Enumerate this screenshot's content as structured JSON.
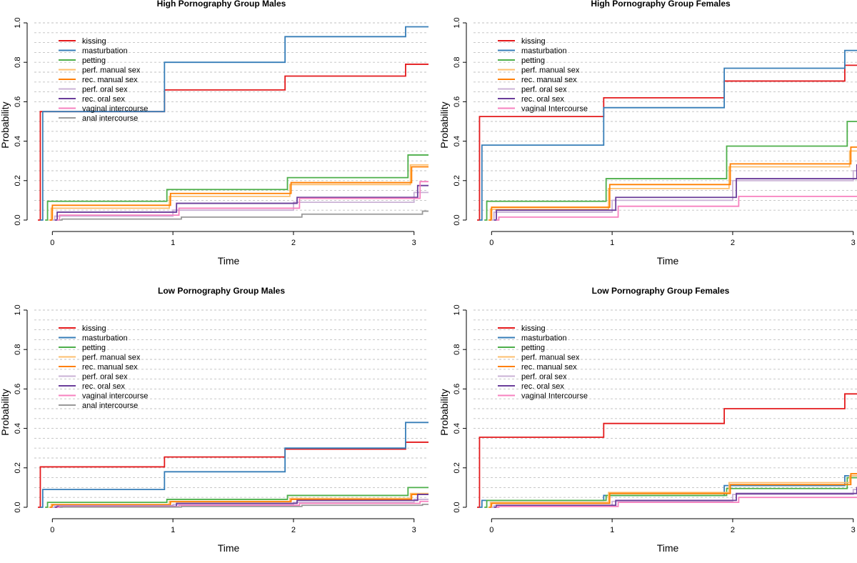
{
  "colors": {
    "kissing": "#e41a1c",
    "masturbation": "#377eb8",
    "petting": "#4daf4a",
    "perf_manual": "#fdbf6f",
    "rec_manual": "#ff7f00",
    "perf_oral": "#cab2d6",
    "rec_oral": "#6a3d9a",
    "vaginal": "#f781bf",
    "anal": "#999999"
  },
  "chart_data": [
    {
      "type": "line",
      "title": "High Pornography Group Males",
      "xlabel": "Time",
      "ylabel": "Probability",
      "xlim": [
        -0.15,
        3.12
      ],
      "ylim": [
        0,
        1
      ],
      "xticks": [
        "0",
        "1",
        "2",
        "3"
      ],
      "yticks": [
        "0.0",
        "0.2",
        "0.4",
        "0.6",
        "0.8",
        "1.0"
      ],
      "grid": "horizontal dashed",
      "legend": "top-left",
      "series": [
        {
          "name": "kissing",
          "color_key": "kissing",
          "x": [
            -0.12,
            -0.1,
            0.93,
            1.93,
            2.93
          ],
          "y": [
            0,
            0.55,
            0.66,
            0.73,
            0.79
          ]
        },
        {
          "name": "masturbation",
          "color_key": "masturbation",
          "x": [
            -0.1,
            -0.08,
            0.93,
            1.93,
            2.93
          ],
          "y": [
            0,
            0.55,
            0.8,
            0.93,
            0.98
          ]
        },
        {
          "name": "petting",
          "color_key": "petting",
          "x": [
            -0.06,
            -0.04,
            0.95,
            1.95,
            2.95
          ],
          "y": [
            0,
            0.095,
            0.155,
            0.215,
            0.33
          ]
        },
        {
          "name": "perf. manual sex",
          "color_key": "perf_manual",
          "x": [
            -0.03,
            -0.01,
            0.97,
            1.97,
            2.97
          ],
          "y": [
            0,
            0.06,
            0.12,
            0.18,
            0.28
          ]
        },
        {
          "name": "rec. manual sex",
          "color_key": "rec_manual",
          "x": [
            -0.02,
            0.0,
            0.98,
            1.98,
            2.98
          ],
          "y": [
            0,
            0.075,
            0.135,
            0.19,
            0.27
          ]
        },
        {
          "name": "perf. oral sex",
          "color_key": "perf_oral",
          "x": [
            0.0,
            0.02,
            1.0,
            2.0,
            3.0
          ],
          "y": [
            0,
            0.02,
            0.05,
            0.09,
            0.14
          ]
        },
        {
          "name": "rec. oral sex",
          "color_key": "rec_oral",
          "x": [
            0.02,
            0.04,
            1.03,
            2.03,
            3.03
          ],
          "y": [
            0,
            0.04,
            0.085,
            0.115,
            0.175
          ]
        },
        {
          "name": "vaginal intercourse",
          "color_key": "vaginal",
          "x": [
            0.04,
            0.06,
            1.05,
            2.05,
            3.05
          ],
          "y": [
            0,
            0.025,
            0.06,
            0.11,
            0.195
          ]
        },
        {
          "name": "anal intercourse",
          "color_key": "anal",
          "x": [
            0.06,
            0.08,
            1.07,
            2.07,
            3.07
          ],
          "y": [
            0,
            0.005,
            0.015,
            0.03,
            0.045
          ]
        }
      ]
    },
    {
      "type": "line",
      "title": "High Pornography Group Females",
      "xlabel": "Time",
      "ylabel": "Probability",
      "xlim": [
        -0.15,
        3.12
      ],
      "ylim": [
        0,
        1
      ],
      "xticks": [
        "0",
        "1",
        "2",
        "3"
      ],
      "yticks": [
        "0.0",
        "0.2",
        "0.4",
        "0.6",
        "0.8",
        "1.0"
      ],
      "grid": "horizontal dashed",
      "legend": "top-left",
      "series": [
        {
          "name": "kissing",
          "color_key": "kissing",
          "x": [
            -0.12,
            -0.1,
            0.93,
            1.93,
            2.93
          ],
          "y": [
            0,
            0.525,
            0.62,
            0.705,
            0.785
          ]
        },
        {
          "name": "masturbation",
          "color_key": "masturbation",
          "x": [
            -0.1,
            -0.08,
            0.93,
            1.93,
            2.93
          ],
          "y": [
            0,
            0.38,
            0.57,
            0.77,
            0.86
          ]
        },
        {
          "name": "petting",
          "color_key": "petting",
          "x": [
            -0.06,
            -0.04,
            0.95,
            1.95,
            2.95
          ],
          "y": [
            0,
            0.095,
            0.21,
            0.375,
            0.5
          ]
        },
        {
          "name": "perf. manual sex",
          "color_key": "perf_manual",
          "x": [
            -0.03,
            -0.01,
            0.97,
            1.97,
            2.97
          ],
          "y": [
            0,
            0.055,
            0.16,
            0.27,
            0.35
          ]
        },
        {
          "name": "rec. manual sex",
          "color_key": "rec_manual",
          "x": [
            -0.02,
            0.0,
            0.98,
            1.98,
            2.98
          ],
          "y": [
            0,
            0.065,
            0.18,
            0.285,
            0.37
          ]
        },
        {
          "name": "perf. oral sex",
          "color_key": "perf_oral",
          "x": [
            0.0,
            0.02,
            1.0,
            2.0,
            3.0
          ],
          "y": [
            0,
            0.04,
            0.1,
            0.2,
            0.25
          ]
        },
        {
          "name": "rec. oral sex",
          "color_key": "rec_oral",
          "x": [
            0.02,
            0.04,
            1.03,
            2.03,
            3.03
          ],
          "y": [
            0,
            0.05,
            0.115,
            0.21,
            0.28
          ]
        },
        {
          "name": "vaginal Intercourse",
          "color_key": "vaginal",
          "x": [
            0.04,
            0.06,
            1.05,
            2.05,
            3.05
          ],
          "y": [
            0,
            0.015,
            0.07,
            0.12,
            0.17
          ]
        }
      ]
    },
    {
      "type": "line",
      "title": "Low Pornography Group Males",
      "xlabel": "Time",
      "ylabel": "Probability",
      "xlim": [
        -0.15,
        3.12
      ],
      "ylim": [
        0,
        1
      ],
      "xticks": [
        "0",
        "1",
        "2",
        "3"
      ],
      "yticks": [
        "0.0",
        "0.2",
        "0.4",
        "0.6",
        "0.8",
        "1.0"
      ],
      "grid": "horizontal dashed",
      "legend": "top-left",
      "series": [
        {
          "name": "kissing",
          "color_key": "kissing",
          "x": [
            -0.12,
            -0.1,
            0.93,
            1.93,
            2.93
          ],
          "y": [
            0,
            0.205,
            0.255,
            0.295,
            0.33
          ]
        },
        {
          "name": "masturbation",
          "color_key": "masturbation",
          "x": [
            -0.1,
            -0.08,
            0.93,
            1.93,
            2.93
          ],
          "y": [
            0,
            0.09,
            0.18,
            0.3,
            0.43
          ]
        },
        {
          "name": "petting",
          "color_key": "petting",
          "x": [
            -0.06,
            -0.04,
            0.95,
            1.95,
            2.95
          ],
          "y": [
            0,
            0.025,
            0.04,
            0.06,
            0.1
          ]
        },
        {
          "name": "perf. manual sex",
          "color_key": "perf_manual",
          "x": [
            -0.03,
            -0.01,
            0.97,
            1.97,
            2.97
          ],
          "y": [
            0,
            0.015,
            0.03,
            0.045,
            0.07
          ]
        },
        {
          "name": "rec. manual sex",
          "color_key": "rec_manual",
          "x": [
            -0.02,
            0.0,
            0.98,
            1.98,
            2.98
          ],
          "y": [
            0,
            0.012,
            0.028,
            0.04,
            0.065
          ]
        },
        {
          "name": "perf. oral sex",
          "color_key": "perf_oral",
          "x": [
            0.0,
            0.02,
            1.0,
            2.0,
            3.0
          ],
          "y": [
            0,
            0.008,
            0.015,
            0.025,
            0.04
          ]
        },
        {
          "name": "rec. oral sex",
          "color_key": "rec_oral",
          "x": [
            0.02,
            0.04,
            1.03,
            2.03,
            3.03
          ],
          "y": [
            0,
            0.005,
            0.02,
            0.035,
            0.065
          ]
        },
        {
          "name": "vaginal intercourse",
          "color_key": "vaginal",
          "x": [
            0.04,
            0.06,
            1.05,
            2.05,
            3.05
          ],
          "y": [
            0,
            0.003,
            0.01,
            0.02,
            0.03
          ]
        },
        {
          "name": "anal intercourse",
          "color_key": "anal",
          "x": [
            0.06,
            0.08,
            1.07,
            2.07,
            3.07
          ],
          "y": [
            0,
            0.001,
            0.004,
            0.01,
            0.015
          ]
        }
      ]
    },
    {
      "type": "line",
      "title": "Low Pornography Group Females",
      "xlabel": "Time",
      "ylabel": "Probability",
      "xlim": [
        -0.15,
        3.12
      ],
      "ylim": [
        0,
        1
      ],
      "xticks": [
        "0",
        "1",
        "2",
        "3"
      ],
      "yticks": [
        "0.0",
        "0.2",
        "0.4",
        "0.6",
        "0.8",
        "1.0"
      ],
      "grid": "horizontal dashed",
      "legend": "top-left",
      "series": [
        {
          "name": "kissing",
          "color_key": "kissing",
          "x": [
            -0.12,
            -0.1,
            0.93,
            1.93,
            2.93
          ],
          "y": [
            0,
            0.355,
            0.425,
            0.5,
            0.575
          ]
        },
        {
          "name": "masturbation",
          "color_key": "masturbation",
          "x": [
            -0.1,
            -0.08,
            0.93,
            1.93,
            2.93
          ],
          "y": [
            0,
            0.035,
            0.06,
            0.11,
            0.16
          ]
        },
        {
          "name": "petting",
          "color_key": "petting",
          "x": [
            -0.06,
            -0.04,
            0.95,
            1.95,
            2.95
          ],
          "y": [
            0,
            0.035,
            0.06,
            0.095,
            0.15
          ]
        },
        {
          "name": "perf. manual sex",
          "color_key": "perf_manual",
          "x": [
            -0.03,
            -0.01,
            0.97,
            1.97,
            2.97
          ],
          "y": [
            0,
            0.025,
            0.075,
            0.125,
            0.16
          ]
        },
        {
          "name": "rec. manual sex",
          "color_key": "rec_manual",
          "x": [
            -0.02,
            0.0,
            0.98,
            1.98,
            2.98
          ],
          "y": [
            0,
            0.02,
            0.07,
            0.115,
            0.17
          ]
        },
        {
          "name": "perf. oral sex",
          "color_key": "perf_oral",
          "x": [
            0.0,
            0.02,
            1.0,
            2.0,
            3.0
          ],
          "y": [
            0,
            0.008,
            0.03,
            0.065,
            0.09
          ]
        },
        {
          "name": "rec. oral sex",
          "color_key": "rec_oral",
          "x": [
            0.02,
            0.04,
            1.03,
            2.03,
            3.03
          ],
          "y": [
            0,
            0.01,
            0.035,
            0.07,
            0.1
          ]
        },
        {
          "name": "vaginal Intercourse",
          "color_key": "vaginal",
          "x": [
            0.04,
            0.06,
            1.05,
            2.05,
            3.05
          ],
          "y": [
            0,
            0.004,
            0.025,
            0.05,
            0.085
          ]
        }
      ]
    }
  ]
}
